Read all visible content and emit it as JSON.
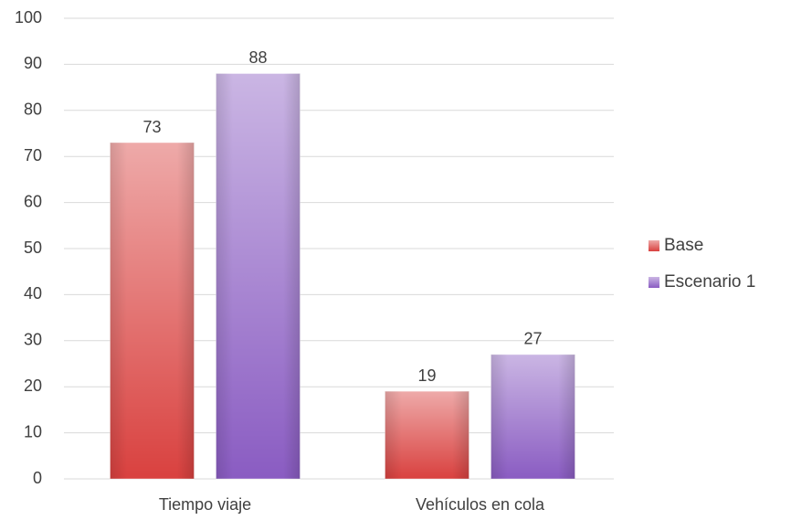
{
  "chart_data": {
    "type": "bar",
    "categories": [
      "Tiempo viaje",
      "Vehículos en cola"
    ],
    "series": [
      {
        "name": "Base",
        "color": "#d9413f",
        "values": [
          73,
          19
        ]
      },
      {
        "name": "Escenario 1",
        "color": "#8a5cc2",
        "values": [
          88,
          27
        ]
      }
    ],
    "ylim": [
      0,
      100
    ],
    "yticks": [
      0,
      10,
      20,
      30,
      40,
      50,
      60,
      70,
      80,
      90,
      100
    ],
    "grid": true,
    "legend": "right"
  }
}
